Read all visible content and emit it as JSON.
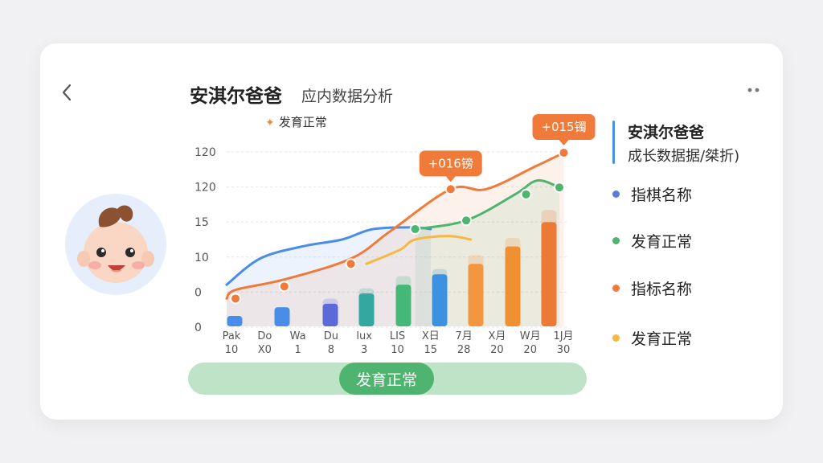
{
  "header": {
    "title": "安淇尔爸爸",
    "subtitle": "应内数据分析",
    "legend_label": "发育正常",
    "back_icon": "chevron-left-icon",
    "more_icon": "more-dots-icon"
  },
  "avatar": {
    "icon": "baby-face-icon"
  },
  "sidebar": {
    "title": "安淇尔爸爸",
    "subtitle": "成长数据据/桀折)",
    "accent_color": "#4a90e2",
    "legend": [
      {
        "label": "指棋名称",
        "color": "#5b7be0"
      },
      {
        "label": "发育正常",
        "color": "#4fb46f"
      },
      {
        "label": "指标名称",
        "color": "#f07a3a"
      },
      {
        "label": "发育正常",
        "color": "#f5b942"
      }
    ]
  },
  "status": {
    "label": "发育正常",
    "bar_color": "#bfe3c6",
    "pill_color": "#4fb46f"
  },
  "chart_data": {
    "type": "bar",
    "y_ticks": [
      "120",
      "120",
      "15",
      "10",
      "0",
      "0"
    ],
    "x_ticks": [
      [
        "Pak",
        "10"
      ],
      [
        "Do",
        "X0"
      ],
      [
        "Wa",
        "1"
      ],
      [
        "Du",
        "8"
      ],
      [
        "lux",
        "3"
      ],
      [
        "LIS",
        "10"
      ],
      [
        "X日",
        "15"
      ],
      [
        "7月",
        "28"
      ],
      [
        "X月",
        "20"
      ],
      [
        "W月",
        "20"
      ],
      [
        "1J月",
        "30"
      ]
    ],
    "bars": [
      {
        "value": 0.6,
        "ghost": 0.6,
        "color": "#4a8de8"
      },
      {
        "value": 1.1,
        "ghost": 1.1,
        "color": "#4a8de8"
      },
      {
        "value": 1.3,
        "ghost": 1.6,
        "color": "#5b6ad8"
      },
      {
        "value": 1.9,
        "ghost": 2.2,
        "color": "#33a8a0"
      },
      {
        "value": 2.4,
        "ghost": 2.9,
        "color": "#45b877"
      },
      {
        "value": 3.0,
        "ghost": 3.3,
        "color": "#3c92e0"
      },
      {
        "value": 3.6,
        "ghost": 4.1,
        "color": "#f29640"
      },
      {
        "value": 4.6,
        "ghost": 5.1,
        "color": "#f09030"
      },
      {
        "value": 6.0,
        "ghost": 6.7,
        "color": "#ea7a35"
      }
    ],
    "series": [
      {
        "key": "blue",
        "color": "#4a8de8",
        "points": [
          [
            0.0,
            2.4
          ],
          [
            1.5,
            3.9
          ],
          [
            3.4,
            4.6
          ],
          [
            5.2,
            5.0
          ],
          [
            6.6,
            5.6
          ],
          [
            8.4,
            5.7
          ],
          [
            9.2,
            5.6
          ]
        ]
      },
      {
        "key": "orange",
        "color": "#f07a3a",
        "points": [
          [
            0.0,
            1.6
          ],
          [
            0.4,
            2.1
          ],
          [
            2.6,
            2.7
          ],
          [
            5.6,
            3.9
          ],
          [
            7.4,
            5.5
          ],
          [
            10.1,
            7.9
          ],
          [
            11.7,
            7.9
          ],
          [
            13.9,
            9.2
          ],
          [
            15.2,
            10.0
          ]
        ]
      },
      {
        "key": "green",
        "color": "#4fb46f",
        "points": [
          [
            8.5,
            5.6
          ],
          [
            10.8,
            6.1
          ],
          [
            13.0,
            7.6
          ],
          [
            14.0,
            8.4
          ],
          [
            15.0,
            8.0
          ]
        ]
      },
      {
        "key": "yellow",
        "color": "#f5b942",
        "points": [
          [
            6.3,
            3.6
          ],
          [
            7.8,
            4.4
          ],
          [
            8.5,
            5.0
          ],
          [
            10.0,
            5.2
          ],
          [
            11.0,
            5.0
          ]
        ]
      }
    ],
    "markers": [
      {
        "series": "orange",
        "points": [
          [
            0.4,
            1.6
          ],
          [
            2.6,
            2.3
          ],
          [
            5.6,
            3.6
          ],
          [
            10.1,
            7.9
          ],
          [
            15.2,
            10.0
          ]
        ]
      },
      {
        "series": "green",
        "points": [
          [
            8.5,
            5.6
          ],
          [
            10.8,
            6.1
          ],
          [
            13.5,
            7.6
          ],
          [
            15.0,
            8.0
          ]
        ]
      }
    ],
    "callouts": [
      {
        "text": "+016镑",
        "anchor": [
          10.1,
          7.9
        ]
      },
      {
        "text": "+015镯",
        "anchor": [
          15.2,
          10.0
        ]
      }
    ],
    "grid": true
  }
}
